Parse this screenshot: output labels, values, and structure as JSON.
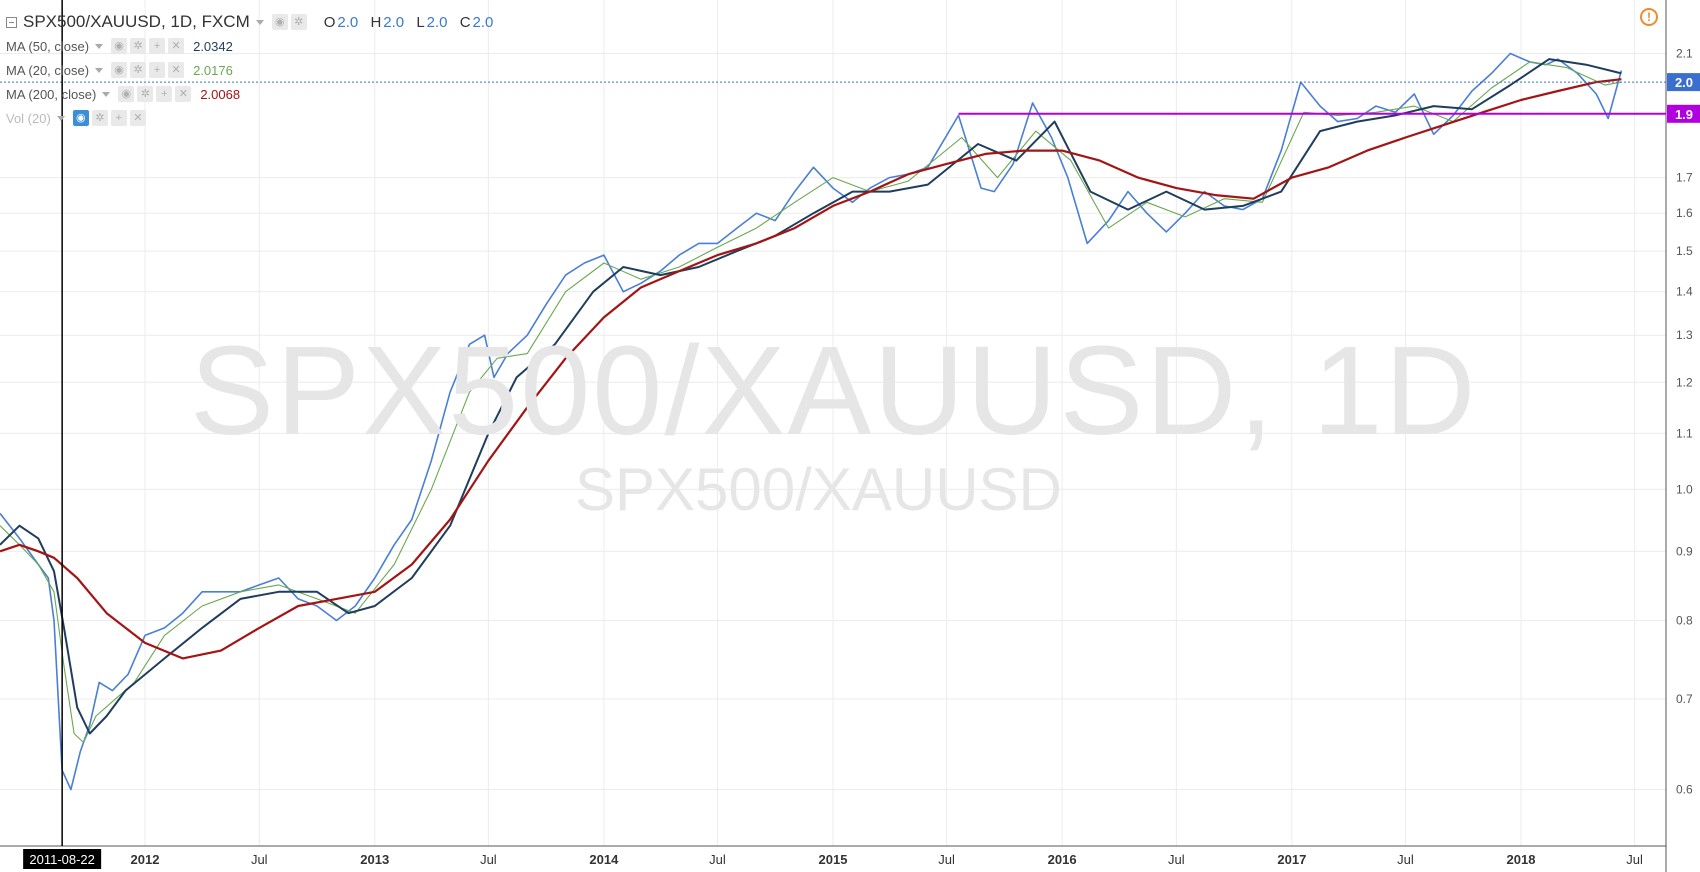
{
  "header": {
    "symbol_title": "SPX500/XAUUSD, 1D, FXCM",
    "ohlc": [
      {
        "key": "O",
        "value": "2.0"
      },
      {
        "key": "H",
        "value": "2.0"
      },
      {
        "key": "L",
        "value": "2.0"
      },
      {
        "key": "C",
        "value": "2.0"
      }
    ]
  },
  "indicators": [
    {
      "label": "MA (50, close)",
      "value": "2.0342",
      "color": "#1f3d5c"
    },
    {
      "label": "MA (20, close)",
      "value": "2.0176",
      "color": "#6aa84f"
    },
    {
      "label": "MA (200, close)",
      "value": "2.0068",
      "color": "#a31515"
    },
    {
      "label": "Vol (20)",
      "value": "",
      "color": "#bbbbbb"
    }
  ],
  "watermark": {
    "main": "SPX500/XAUUSD, 1D",
    "sub": "SPX500/XAUUSD"
  },
  "icons": {
    "warning": "warning-icon",
    "visibility": "eye-icon",
    "settings": "gear-icon",
    "add": "plus-icon",
    "remove": "close-icon"
  },
  "chart_data": {
    "type": "line",
    "title": "SPX500/XAUUSD, 1D, FXCM",
    "y_scale": "log",
    "ylim": [
      0.545,
      2.3
    ],
    "y_ticks": [
      "2.1",
      "1.7",
      "1.6",
      "1.5",
      "1.4",
      "1.3",
      "1.2",
      "1.1",
      "1.0",
      "0.9",
      "0.8",
      "0.7",
      "0.6"
    ],
    "y_tick_values": [
      2.1,
      1.7,
      1.6,
      1.5,
      1.4,
      1.3,
      1.2,
      1.1,
      1.0,
      0.9,
      0.8,
      0.7,
      0.6
    ],
    "xlim": [
      "2011-05-15",
      "2018-08-20"
    ],
    "x_ticks": [
      "2012",
      "Jul",
      "2013",
      "Jul",
      "2014",
      "Jul",
      "2015",
      "Jul",
      "2016",
      "Jul",
      "2017",
      "Jul",
      "2018",
      "Jul"
    ],
    "x_tick_dates": [
      "2012-01-01",
      "2012-07-01",
      "2013-01-01",
      "2013-07-01",
      "2014-01-01",
      "2014-07-01",
      "2015-01-01",
      "2015-07-01",
      "2016-01-01",
      "2016-07-01",
      "2017-01-01",
      "2017-07-01",
      "2018-01-01",
      "2018-07-01"
    ],
    "bold_x_ticks": [
      "2012",
      "2013",
      "2014",
      "2015",
      "2016",
      "2017",
      "2018"
    ],
    "grid": true,
    "crosshair": {
      "date": "2011-08-22",
      "label": "2011-08-22"
    },
    "price_labels": [
      {
        "text": "2.0",
        "value": 2.0,
        "color": "#3a6fd0"
      },
      {
        "text": "1.9",
        "value": 1.895,
        "color": "#b000e0"
      }
    ],
    "horizontal_lines": [
      {
        "value": 1.895,
        "color": "#b000e0",
        "from": "2015-07-20",
        "to": "2018-08-20"
      },
      {
        "value": 2.0,
        "color": "#3a6fd0",
        "dotted": true
      }
    ],
    "series": [
      {
        "name": "SPX500/XAUUSD",
        "color": "#4a7fd6",
        "x": [
          "2011-05-15",
          "2011-06-15",
          "2011-07-15",
          "2011-07-31",
          "2011-08-09",
          "2011-08-22",
          "2011-09-05",
          "2011-09-20",
          "2011-10-05",
          "2011-10-20",
          "2011-11-10",
          "2011-12-05",
          "2012-01-01",
          "2012-02-01",
          "2012-03-01",
          "2012-04-01",
          "2012-05-01",
          "2012-06-01",
          "2012-07-01",
          "2012-08-01",
          "2012-09-01",
          "2012-10-01",
          "2012-11-01",
          "2012-12-01",
          "2013-01-01",
          "2013-02-01",
          "2013-03-01",
          "2013-04-01",
          "2013-05-01",
          "2013-06-01",
          "2013-06-25",
          "2013-07-10",
          "2013-08-01",
          "2013-09-01",
          "2013-10-01",
          "2013-11-01",
          "2013-12-01",
          "2014-01-01",
          "2014-02-01",
          "2014-03-01",
          "2014-04-01",
          "2014-05-01",
          "2014-06-01",
          "2014-07-01",
          "2014-08-01",
          "2014-09-01",
          "2014-10-01",
          "2014-11-01",
          "2014-12-01",
          "2015-01-01",
          "2015-02-01",
          "2015-03-01",
          "2015-04-01",
          "2015-05-01",
          "2015-06-01",
          "2015-07-20",
          "2015-08-25",
          "2015-09-15",
          "2015-10-15",
          "2015-11-15",
          "2015-12-15",
          "2016-01-10",
          "2016-02-10",
          "2016-03-15",
          "2016-04-15",
          "2016-05-15",
          "2016-06-15",
          "2016-07-15",
          "2016-08-15",
          "2016-09-15",
          "2016-10-15",
          "2016-11-15",
          "2016-12-15",
          "2017-01-15",
          "2017-02-15",
          "2017-03-15",
          "2017-04-15",
          "2017-05-15",
          "2017-06-15",
          "2017-07-15",
          "2017-08-15",
          "2017-09-15",
          "2017-10-15",
          "2017-11-15",
          "2017-12-15",
          "2018-01-15",
          "2018-02-10",
          "2018-03-01",
          "2018-04-01",
          "2018-05-01",
          "2018-05-20",
          "2018-06-10"
        ],
        "values": [
          0.96,
          0.92,
          0.88,
          0.86,
          0.8,
          0.62,
          0.6,
          0.64,
          0.67,
          0.72,
          0.71,
          0.73,
          0.78,
          0.79,
          0.81,
          0.84,
          0.84,
          0.84,
          0.85,
          0.86,
          0.83,
          0.82,
          0.8,
          0.82,
          0.86,
          0.91,
          0.95,
          1.05,
          1.18,
          1.28,
          1.3,
          1.21,
          1.26,
          1.3,
          1.37,
          1.44,
          1.47,
          1.49,
          1.4,
          1.42,
          1.45,
          1.49,
          1.52,
          1.52,
          1.56,
          1.6,
          1.58,
          1.66,
          1.73,
          1.67,
          1.63,
          1.67,
          1.7,
          1.71,
          1.73,
          1.89,
          1.67,
          1.66,
          1.74,
          1.93,
          1.82,
          1.7,
          1.52,
          1.58,
          1.66,
          1.6,
          1.55,
          1.6,
          1.66,
          1.62,
          1.61,
          1.64,
          1.78,
          2.0,
          1.92,
          1.87,
          1.88,
          1.92,
          1.9,
          1.96,
          1.83,
          1.89,
          1.97,
          2.03,
          2.1,
          2.07,
          2.06,
          2.08,
          2.03,
          1.96,
          1.88,
          2.04
        ]
      },
      {
        "name": "MA (20, close)",
        "color": "#6aa84f",
        "x": [
          "2011-05-15",
          "2011-06-15",
          "2011-07-15",
          "2011-08-09",
          "2011-08-25",
          "2011-09-10",
          "2011-09-25",
          "2011-10-15",
          "2011-11-15",
          "2011-12-15",
          "2012-02-01",
          "2012-04-01",
          "2012-06-01",
          "2012-08-01",
          "2012-10-01",
          "2012-12-01",
          "2013-02-01",
          "2013-04-01",
          "2013-06-01",
          "2013-07-15",
          "2013-09-01",
          "2013-11-01",
          "2014-01-01",
          "2014-03-01",
          "2014-05-01",
          "2014-07-01",
          "2014-09-01",
          "2014-11-01",
          "2015-01-01",
          "2015-03-01",
          "2015-05-01",
          "2015-07-25",
          "2015-09-20",
          "2015-11-20",
          "2016-01-15",
          "2016-03-15",
          "2016-05-15",
          "2016-07-15",
          "2016-09-15",
          "2016-11-15",
          "2017-01-20",
          "2017-03-15",
          "2017-05-15",
          "2017-07-15",
          "2017-09-15",
          "2017-11-15",
          "2018-01-15",
          "2018-03-15",
          "2018-05-15",
          "2018-06-10"
        ],
        "values": [
          0.94,
          0.91,
          0.88,
          0.84,
          0.74,
          0.66,
          0.65,
          0.68,
          0.7,
          0.72,
          0.78,
          0.82,
          0.84,
          0.85,
          0.83,
          0.81,
          0.88,
          1.0,
          1.18,
          1.25,
          1.26,
          1.4,
          1.47,
          1.43,
          1.46,
          1.51,
          1.56,
          1.63,
          1.7,
          1.66,
          1.69,
          1.82,
          1.7,
          1.84,
          1.75,
          1.56,
          1.63,
          1.59,
          1.64,
          1.63,
          1.9,
          1.89,
          1.9,
          1.92,
          1.87,
          1.98,
          2.07,
          2.05,
          1.99,
          2.0
        ]
      },
      {
        "name": "MA (50, close)",
        "color": "#1f3d5c",
        "x": [
          "2011-05-15",
          "2011-06-15",
          "2011-07-15",
          "2011-08-09",
          "2011-08-25",
          "2011-09-15",
          "2011-10-05",
          "2011-11-01",
          "2011-12-01",
          "2012-02-01",
          "2012-04-01",
          "2012-06-01",
          "2012-08-01",
          "2012-10-01",
          "2012-11-20",
          "2013-01-01",
          "2013-03-01",
          "2013-05-01",
          "2013-07-01",
          "2013-08-15",
          "2013-10-15",
          "2013-12-15",
          "2014-02-01",
          "2014-04-01",
          "2014-06-01",
          "2014-08-01",
          "2014-10-01",
          "2014-12-01",
          "2015-02-01",
          "2015-04-01",
          "2015-06-01",
          "2015-08-20",
          "2015-10-20",
          "2015-12-20",
          "2016-02-15",
          "2016-04-15",
          "2016-06-15",
          "2016-08-15",
          "2016-10-15",
          "2016-12-15",
          "2017-02-15",
          "2017-04-15",
          "2017-06-15",
          "2017-08-15",
          "2017-10-15",
          "2017-12-15",
          "2018-02-15",
          "2018-04-15",
          "2018-06-10"
        ],
        "values": [
          0.91,
          0.94,
          0.92,
          0.87,
          0.79,
          0.69,
          0.66,
          0.68,
          0.71,
          0.75,
          0.79,
          0.83,
          0.84,
          0.84,
          0.81,
          0.82,
          0.86,
          0.94,
          1.1,
          1.21,
          1.28,
          1.4,
          1.46,
          1.44,
          1.46,
          1.5,
          1.54,
          1.6,
          1.66,
          1.66,
          1.68,
          1.8,
          1.75,
          1.87,
          1.66,
          1.61,
          1.66,
          1.61,
          1.62,
          1.66,
          1.84,
          1.87,
          1.89,
          1.92,
          1.91,
          1.99,
          2.08,
          2.06,
          2.03
        ]
      },
      {
        "name": "MA (200, close)",
        "color": "#a31515",
        "x": [
          "2011-05-15",
          "2011-06-15",
          "2011-07-15",
          "2011-08-09",
          "2011-09-15",
          "2011-11-01",
          "2012-01-01",
          "2012-03-01",
          "2012-05-01",
          "2012-07-01",
          "2012-09-01",
          "2012-11-01",
          "2013-01-01",
          "2013-03-01",
          "2013-05-01",
          "2013-07-01",
          "2013-09-01",
          "2013-11-01",
          "2014-01-01",
          "2014-03-01",
          "2014-05-01",
          "2014-07-01",
          "2014-09-01",
          "2014-11-01",
          "2015-01-01",
          "2015-03-01",
          "2015-05-01",
          "2015-07-01",
          "2015-09-01",
          "2015-11-01",
          "2016-01-01",
          "2016-03-01",
          "2016-05-01",
          "2016-07-01",
          "2016-09-01",
          "2016-11-01",
          "2017-01-01",
          "2017-03-01",
          "2017-05-01",
          "2017-07-01",
          "2017-09-01",
          "2017-11-01",
          "2018-01-01",
          "2018-03-01",
          "2018-05-01",
          "2018-06-10"
        ],
        "values": [
          0.9,
          0.91,
          0.9,
          0.89,
          0.86,
          0.81,
          0.77,
          0.75,
          0.76,
          0.79,
          0.82,
          0.83,
          0.84,
          0.88,
          0.95,
          1.05,
          1.15,
          1.25,
          1.34,
          1.41,
          1.45,
          1.49,
          1.52,
          1.56,
          1.62,
          1.66,
          1.71,
          1.74,
          1.77,
          1.78,
          1.78,
          1.75,
          1.7,
          1.67,
          1.65,
          1.64,
          1.7,
          1.73,
          1.78,
          1.82,
          1.86,
          1.9,
          1.94,
          1.97,
          2.0,
          2.01
        ]
      }
    ]
  }
}
